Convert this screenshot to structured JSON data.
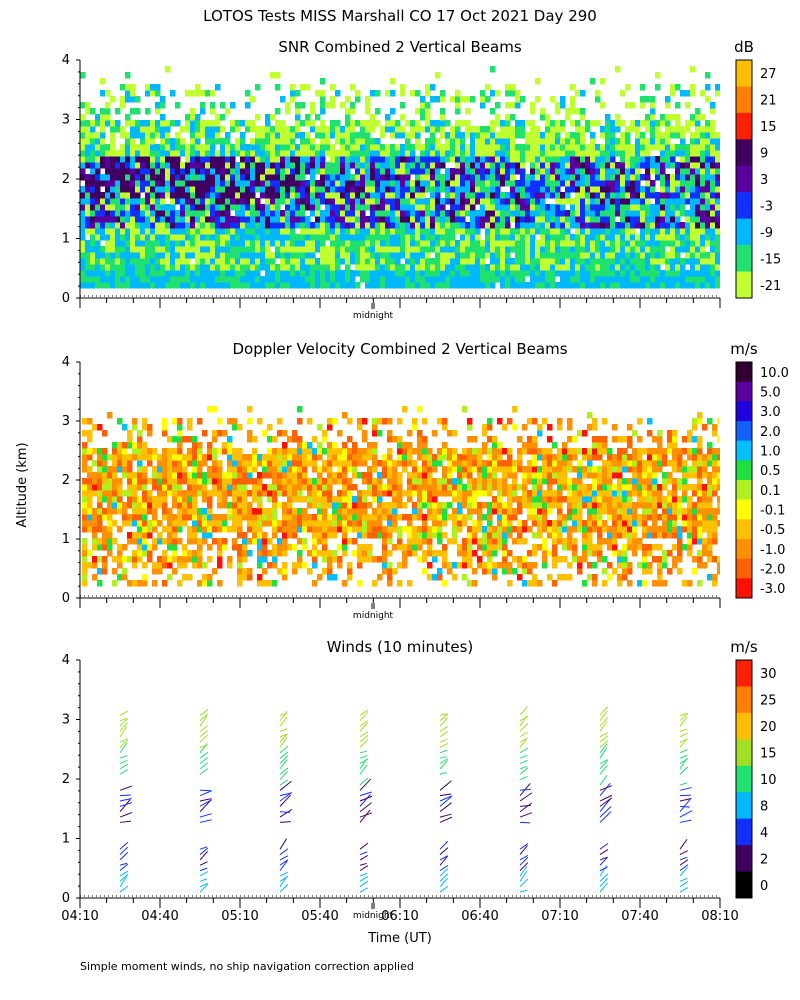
{
  "title": "LOTOS Tests MISS Marshall CO  17 Oct 2021 Day 290",
  "footer_note": "Simple moment winds, no ship navigation correction applied",
  "ylabel": "Altitude (km)",
  "xlabel": "Time (UT)",
  "midnight_label": "midnight",
  "x_tick_labels": [
    "04:10",
    "04:40",
    "05:10",
    "05:40",
    "06:10",
    "06:40",
    "07:10",
    "07:40",
    "08:10"
  ],
  "y_tick_labels": [
    "0",
    "1",
    "2",
    "3",
    "4"
  ],
  "chart_data": [
    {
      "type": "heatmap",
      "title": "SNR Combined 2 Vertical Beams",
      "unit": "dB",
      "ylim": [
        0,
        4
      ],
      "xlim": [
        "04:10",
        "08:10"
      ],
      "colorbar": {
        "labels": [
          "27",
          "21",
          "15",
          "9",
          "3",
          "-3",
          "-9",
          "-15",
          "-21"
        ],
        "colors": [
          "#ffbf00",
          "#ff8000",
          "#ff2000",
          "#400060",
          "#5a00a0",
          "#1030ff",
          "#00b8ff",
          "#20e070",
          "#c0ff30"
        ]
      },
      "cell_colors": [
        "#c0ff30",
        "#20e070",
        "#00b8ff",
        "#1030ff",
        "#5a00a0",
        "#400060"
      ]
    },
    {
      "type": "heatmap",
      "title": "Doppler Velocity Combined 2 Vertical Beams",
      "unit": "m/s",
      "ylim": [
        0,
        4
      ],
      "xlim": [
        "04:10",
        "08:10"
      ],
      "colorbar": {
        "labels": [
          "10.0",
          "5.0",
          "3.0",
          "2.0",
          "1.0",
          "0.5",
          "0.1",
          "-0.1",
          "-0.5",
          "-1.0",
          "-2.0",
          "-3.0"
        ],
        "colors": [
          "#300030",
          "#5a00a0",
          "#2000e0",
          "#1060ff",
          "#00c0ff",
          "#20e040",
          "#b0f020",
          "#ffff00",
          "#ffc000",
          "#ff9000",
          "#ff6000",
          "#ff1000"
        ]
      },
      "cell_colors": [
        "#ffc000",
        "#ff9000",
        "#ff6000",
        "#ffff00",
        "#b0f020",
        "#20e040",
        "#00c0ff",
        "#ff1000"
      ]
    },
    {
      "type": "wind-barbs",
      "title": "Winds (10 minutes)",
      "unit": "m/s",
      "ylim": [
        0,
        4
      ],
      "xlim": [
        "04:10",
        "08:10"
      ],
      "profile_times": [
        "04:25",
        "04:55",
        "05:25",
        "05:55",
        "06:25",
        "06:55",
        "07:25",
        "07:55"
      ],
      "colorbar": {
        "labels": [
          "30",
          "25",
          "20",
          "15",
          "10",
          "8",
          "4",
          "2",
          "0"
        ],
        "colors": [
          "#ff2000",
          "#ff8000",
          "#ffbf00",
          "#a0e020",
          "#20e070",
          "#00b8ff",
          "#1030ff",
          "#400060",
          "#000000"
        ]
      }
    }
  ]
}
